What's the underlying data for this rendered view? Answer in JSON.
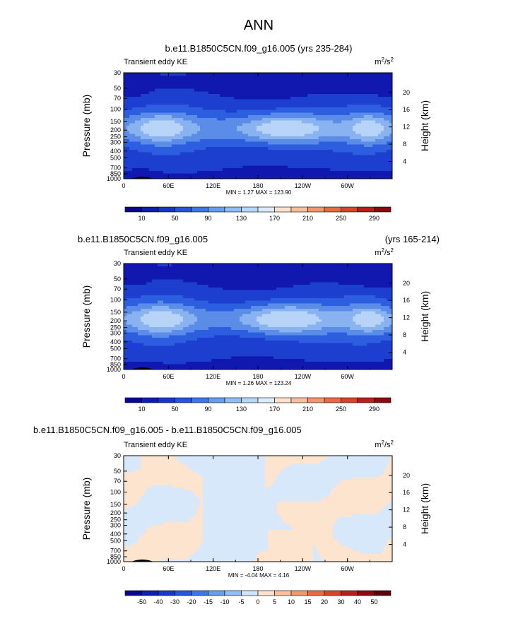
{
  "page_title": "ANN",
  "chart_data": [
    {
      "type": "contour",
      "title": "b.e11.B1850C5CN.f09_g16.005 (yrs 235-284)",
      "title_left": "",
      "title_right": "",
      "left_string": "Transient eddy KE",
      "units_base": "m",
      "units_exp1": "2",
      "units_mid": "/s",
      "units_exp2": "2",
      "ylabel": "Pressure (mb)",
      "ylabel_right": "Height (km)",
      "x_ticks": [
        "0",
        "60E",
        "120E",
        "180",
        "120W",
        "60W"
      ],
      "x_tick_values": [
        0,
        60,
        120,
        180,
        240,
        300
      ],
      "xlim": [
        0,
        360
      ],
      "p_ticks": [
        "30",
        "50",
        "70",
        "100",
        "150",
        "200",
        "250",
        "300",
        "400",
        "500",
        "700",
        "850",
        "1000"
      ],
      "p_values": [
        30,
        50,
        70,
        100,
        150,
        200,
        250,
        300,
        400,
        500,
        700,
        850,
        1000
      ],
      "height_ticks": [
        "20",
        "16",
        "12",
        "8",
        "4"
      ],
      "height_values": [
        20,
        16,
        12,
        8,
        4
      ],
      "min_label": "MIN =",
      "min_value": "1.27",
      "max_label": "MAX =",
      "max_value": "123.90",
      "colorbar_labels": [
        "10",
        "50",
        "90",
        "130",
        "170",
        "210",
        "250",
        "290"
      ],
      "colorbar_levels": [
        0,
        10,
        30,
        50,
        70,
        90,
        110,
        130,
        150,
        170,
        190,
        210,
        230,
        250,
        270,
        290,
        310
      ],
      "colorbar_colors": [
        "#08088f",
        "#0d1fad",
        "#1737c9",
        "#2655db",
        "#4077e8",
        "#669cf2",
        "#8fbdf7",
        "#b8d8fb",
        "#dcebfd",
        "#fde2cc",
        "#f8bf9c",
        "#f2966d",
        "#e86b45",
        "#d6442a",
        "#b61f1a",
        "#8a0a0e"
      ],
      "field_levels": [
        0,
        1,
        2,
        3,
        4,
        5,
        6
      ],
      "field_colors": [
        "#1018b0",
        "#1c3fcf",
        "#2e5ee0",
        "#5b8ce8",
        "#89b3f0",
        "#b7d3f7"
      ]
    },
    {
      "type": "contour",
      "title": "",
      "title_left": "b.e11.B1850C5CN.f09_g16.005",
      "title_right": "(yrs 165-214)",
      "left_string": "Transient eddy KE",
      "units_base": "m",
      "units_exp1": "2",
      "units_mid": "/s",
      "units_exp2": "2",
      "ylabel": "Pressure (mb)",
      "ylabel_right": "Height (km)",
      "x_ticks": [
        "0",
        "60E",
        "120E",
        "180",
        "120W",
        "60W"
      ],
      "x_tick_values": [
        0,
        60,
        120,
        180,
        240,
        300
      ],
      "xlim": [
        0,
        360
      ],
      "p_ticks": [
        "30",
        "50",
        "70",
        "100",
        "150",
        "200",
        "250",
        "300",
        "400",
        "500",
        "700",
        "850",
        "1000"
      ],
      "p_values": [
        30,
        50,
        70,
        100,
        150,
        200,
        250,
        300,
        400,
        500,
        700,
        850,
        1000
      ],
      "height_ticks": [
        "20",
        "16",
        "12",
        "8",
        "4"
      ],
      "height_values": [
        20,
        16,
        12,
        8,
        4
      ],
      "min_label": "MIN =",
      "min_value": "1.26",
      "max_label": "MAX =",
      "max_value": "123.24",
      "colorbar_labels": [
        "10",
        "50",
        "90",
        "130",
        "170",
        "210",
        "250",
        "290"
      ],
      "colorbar_levels": [
        0,
        10,
        30,
        50,
        70,
        90,
        110,
        130,
        150,
        170,
        190,
        210,
        230,
        250,
        270,
        290,
        310
      ],
      "colorbar_colors": [
        "#08088f",
        "#0d1fad",
        "#1737c9",
        "#2655db",
        "#4077e8",
        "#669cf2",
        "#8fbdf7",
        "#b8d8fb",
        "#dcebfd",
        "#fde2cc",
        "#f8bf9c",
        "#f2966d",
        "#e86b45",
        "#d6442a",
        "#b61f1a",
        "#8a0a0e"
      ],
      "field_levels": [
        0,
        1,
        2,
        3,
        4,
        5,
        6
      ],
      "field_colors": [
        "#1018b0",
        "#1c3fcf",
        "#2e5ee0",
        "#5b8ce8",
        "#89b3f0",
        "#b7d3f7"
      ]
    },
    {
      "type": "contour",
      "title": "",
      "title_left": "b.e11.B1850C5CN.f09_g16.005 - b.e11.B1850C5CN.f09_g16.005",
      "title_right": "",
      "left_string": "Transient eddy KE",
      "units_base": "m",
      "units_exp1": "2",
      "units_mid": "/s",
      "units_exp2": "2",
      "ylabel": "Pressure (mb)",
      "ylabel_right": "Height (km)",
      "x_ticks": [
        "0",
        "60E",
        "120E",
        "180",
        "120W",
        "60W"
      ],
      "x_tick_values": [
        0,
        60,
        120,
        180,
        240,
        300
      ],
      "xlim": [
        0,
        360
      ],
      "p_ticks": [
        "30",
        "50",
        "70",
        "100",
        "150",
        "200",
        "250",
        "300",
        "400",
        "500",
        "700",
        "850",
        "1000"
      ],
      "p_values": [
        30,
        50,
        70,
        100,
        150,
        200,
        250,
        300,
        400,
        500,
        700,
        850,
        1000
      ],
      "height_ticks": [
        "20",
        "16",
        "12",
        "8",
        "4"
      ],
      "height_values": [
        20,
        16,
        12,
        8,
        4
      ],
      "min_label": "MIN =",
      "min_value": "-4.04",
      "max_label": "MAX =",
      "max_value": "4.16",
      "colorbar_labels": [
        "-50",
        "-40",
        "-30",
        "-20",
        "-15",
        "-10",
        "-5",
        "0",
        "5",
        "10",
        "15",
        "20",
        "30",
        "40",
        "50"
      ],
      "colorbar_levels": [
        -60,
        -50,
        -40,
        -30,
        -20,
        -15,
        -10,
        -5,
        0,
        5,
        10,
        15,
        20,
        30,
        40,
        50,
        60
      ],
      "colorbar_colors": [
        "#08088f",
        "#0d1fad",
        "#1737c9",
        "#2655db",
        "#4077e8",
        "#669cf2",
        "#8fbdf7",
        "#cfe3fb",
        "#fde2cc",
        "#f8bf9c",
        "#f2966d",
        "#e86b45",
        "#d6442a",
        "#b61f1a",
        "#8a0a0e",
        "#5c0508"
      ],
      "field_levels": [
        -5,
        0,
        5
      ],
      "field_colors": [
        "#d8e8fb",
        "#fde4cf"
      ]
    }
  ]
}
